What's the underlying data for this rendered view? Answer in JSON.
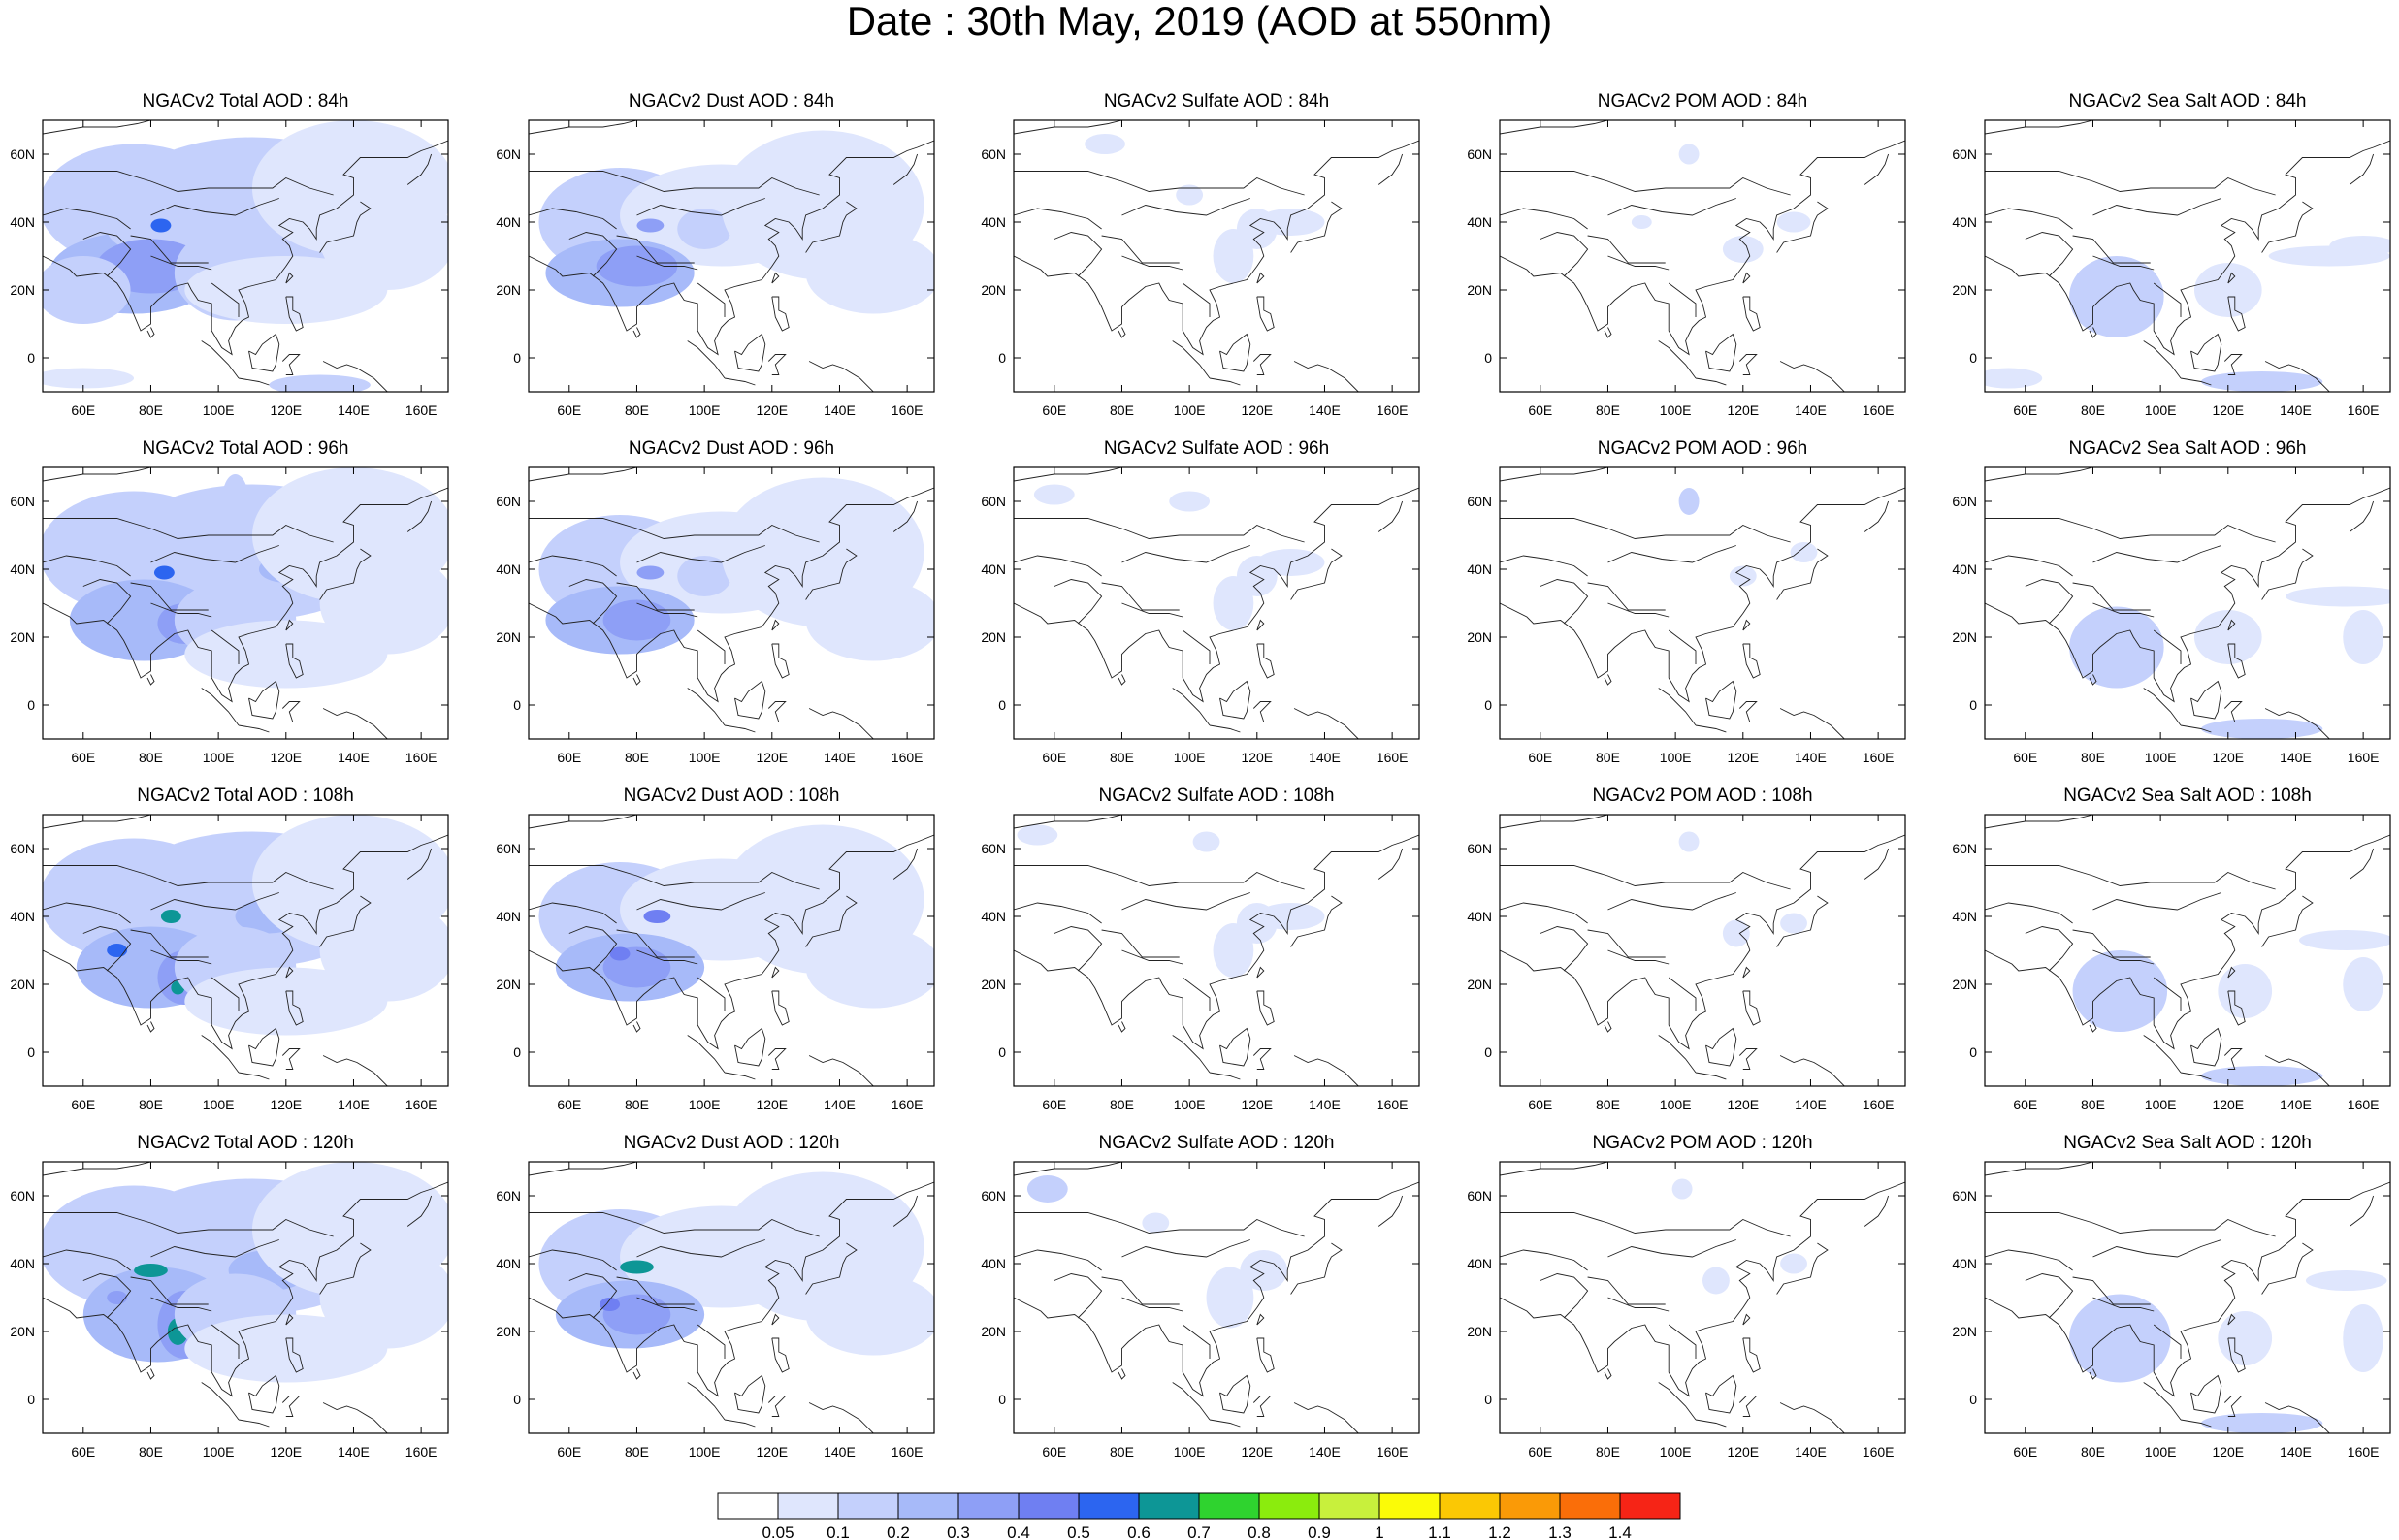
{
  "figure": {
    "title": "Date : 30th May, 2019 (AOD at 550nm)"
  },
  "chart_data": {
    "type": "heatmap",
    "projection": "cylindrical equidistant map of Asia",
    "lon_range": [
      48,
      168
    ],
    "lat_range": [
      -10,
      70
    ],
    "x_ticks": [
      "60E",
      "80E",
      "100E",
      "120E",
      "140E",
      "160E"
    ],
    "x_tick_values": [
      60,
      80,
      100,
      120,
      140,
      160
    ],
    "y_ticks": [
      "60N",
      "40N",
      "20N",
      "0"
    ],
    "y_tick_values": [
      60,
      40,
      20,
      0
    ],
    "panel_titles": [
      [
        "NGACv2 Total AOD : 84h",
        "NGACv2 Dust AOD : 84h",
        "NGACv2 Sulfate AOD : 84h",
        "NGACv2 POM AOD : 84h",
        "NGACv2 Sea Salt AOD : 84h"
      ],
      [
        "NGACv2 Total AOD : 96h",
        "NGACv2 Dust AOD : 96h",
        "NGACv2 Sulfate AOD : 96h",
        "NGACv2 POM AOD : 96h",
        "NGACv2 Sea Salt AOD : 96h"
      ],
      [
        "NGACv2 Total AOD : 108h",
        "NGACv2 Dust AOD : 108h",
        "NGACv2 Sulfate AOD : 108h",
        "NGACv2 POM AOD : 108h",
        "NGACv2 Sea Salt AOD : 108h"
      ],
      [
        "NGACv2 Total AOD : 120h",
        "NGACv2 Dust AOD : 120h",
        "NGACv2 Sulfate AOD : 120h",
        "NGACv2 POM AOD : 120h",
        "NGACv2 Sea Salt  AOD : 120h"
      ]
    ],
    "colorbar": {
      "labels": [
        "0.05",
        "0.1",
        "0.2",
        "0.3",
        "0.4",
        "0.5",
        "0.6",
        "0.7",
        "0.8",
        "0.9",
        "1",
        "1.1",
        "1.2",
        "1.3",
        "1.4"
      ],
      "colors": [
        "#ffffff",
        "#dfe6fd",
        "#c4d0fc",
        "#a7baf9",
        "#8e9ff6",
        "#6f7ff2",
        "#2c65f0",
        "#0d9696",
        "#2fd32f",
        "#8bec0d",
        "#c8f03c",
        "#fbfb07",
        "#fbc804",
        "#fa9a07",
        "#fa6e09",
        "#f62416"
      ]
    },
    "blobs_note": "approximate AOD fields per panel; each blob: [lon, lat, radius_lon, radius_lat, color_index]",
    "blobs": [
      [
        [
          [
            75,
            45,
            28,
            18,
            2
          ],
          [
            110,
            45,
            40,
            20,
            2
          ],
          [
            75,
            25,
            25,
            12,
            3
          ],
          [
            95,
            38,
            28,
            10,
            2
          ],
          [
            140,
            50,
            30,
            20,
            1
          ],
          [
            150,
            35,
            20,
            15,
            1
          ],
          [
            80,
            27,
            16,
            8,
            4
          ],
          [
            83,
            39,
            3,
            2,
            6
          ],
          [
            105,
            25,
            18,
            14,
            2
          ],
          [
            60,
            20,
            14,
            10,
            2
          ],
          [
            120,
            20,
            30,
            10,
            1
          ],
          [
            130,
            -8,
            15,
            3,
            2
          ],
          [
            60,
            -6,
            15,
            3,
            1
          ]
        ],
        [
          [
            75,
            40,
            24,
            16,
            2
          ],
          [
            105,
            42,
            30,
            15,
            1
          ],
          [
            75,
            25,
            22,
            10,
            3
          ],
          [
            80,
            27,
            12,
            6,
            4
          ],
          [
            84,
            39,
            4,
            2,
            4
          ],
          [
            100,
            38,
            8,
            6,
            2
          ],
          [
            135,
            45,
            30,
            22,
            1
          ],
          [
            150,
            25,
            20,
            12,
            1
          ]
        ],
        [
          [
            113,
            30,
            6,
            8,
            1
          ],
          [
            120,
            38,
            6,
            6,
            1
          ],
          [
            130,
            40,
            10,
            4,
            1
          ],
          [
            75,
            63,
            6,
            3,
            1
          ],
          [
            100,
            48,
            4,
            3,
            1
          ]
        ],
        [
          [
            104,
            60,
            3,
            3,
            1
          ],
          [
            120,
            32,
            6,
            4,
            1
          ],
          [
            135,
            40,
            5,
            3,
            1
          ],
          [
            90,
            40,
            3,
            2,
            1
          ]
        ],
        [
          [
            87,
            18,
            14,
            12,
            2
          ],
          [
            120,
            20,
            10,
            8,
            1
          ],
          [
            150,
            30,
            18,
            3,
            1
          ],
          [
            160,
            33,
            10,
            3,
            1
          ],
          [
            55,
            -6,
            10,
            3,
            1
          ],
          [
            130,
            -7,
            18,
            3,
            2
          ]
        ]
      ],
      [
        [
          [
            75,
            45,
            28,
            18,
            2
          ],
          [
            110,
            45,
            40,
            20,
            2
          ],
          [
            78,
            25,
            22,
            12,
            3
          ],
          [
            90,
            24,
            8,
            6,
            4
          ],
          [
            92,
            22,
            3,
            2,
            7
          ],
          [
            84,
            39,
            3,
            2,
            6
          ],
          [
            120,
            40,
            8,
            4,
            3
          ],
          [
            128,
            39,
            3,
            2,
            7
          ],
          [
            105,
            60,
            4,
            8,
            2
          ],
          [
            140,
            50,
            30,
            20,
            1
          ],
          [
            150,
            30,
            20,
            15,
            1
          ],
          [
            105,
            25,
            18,
            12,
            2
          ],
          [
            120,
            15,
            30,
            10,
            1
          ]
        ],
        [
          [
            75,
            40,
            24,
            16,
            2
          ],
          [
            105,
            42,
            30,
            15,
            1
          ],
          [
            75,
            25,
            22,
            10,
            3
          ],
          [
            80,
            25,
            10,
            6,
            4
          ],
          [
            84,
            39,
            4,
            2,
            4
          ],
          [
            100,
            38,
            8,
            6,
            2
          ],
          [
            135,
            45,
            30,
            22,
            1
          ],
          [
            150,
            25,
            20,
            12,
            1
          ]
        ],
        [
          [
            113,
            30,
            6,
            8,
            1
          ],
          [
            120,
            38,
            6,
            6,
            1
          ],
          [
            130,
            42,
            10,
            4,
            1
          ],
          [
            60,
            62,
            6,
            3,
            1
          ],
          [
            100,
            60,
            6,
            3,
            1
          ]
        ],
        [
          [
            104,
            60,
            3,
            4,
            2
          ],
          [
            120,
            38,
            4,
            3,
            1
          ],
          [
            138,
            45,
            4,
            3,
            1
          ]
        ],
        [
          [
            87,
            17,
            14,
            12,
            2
          ],
          [
            120,
            20,
            10,
            8,
            1
          ],
          [
            155,
            32,
            18,
            3,
            1
          ],
          [
            160,
            20,
            6,
            8,
            1
          ],
          [
            130,
            -7,
            18,
            3,
            2
          ]
        ]
      ],
      [
        [
          [
            75,
            45,
            28,
            18,
            2
          ],
          [
            110,
            45,
            40,
            20,
            2
          ],
          [
            80,
            25,
            22,
            12,
            3
          ],
          [
            90,
            22,
            8,
            8,
            4
          ],
          [
            86,
            40,
            3,
            2,
            7
          ],
          [
            70,
            30,
            3,
            2,
            6
          ],
          [
            88,
            19,
            2,
            2,
            7
          ],
          [
            115,
            40,
            10,
            5,
            3
          ],
          [
            105,
            25,
            18,
            12,
            2
          ],
          [
            140,
            50,
            30,
            20,
            1
          ],
          [
            150,
            30,
            20,
            15,
            1
          ],
          [
            120,
            15,
            30,
            10,
            1
          ]
        ],
        [
          [
            75,
            40,
            24,
            16,
            2
          ],
          [
            105,
            42,
            30,
            15,
            1
          ],
          [
            78,
            25,
            22,
            10,
            3
          ],
          [
            80,
            25,
            10,
            6,
            4
          ],
          [
            86,
            40,
            4,
            2,
            5
          ],
          [
            75,
            29,
            3,
            2,
            5
          ],
          [
            115,
            40,
            8,
            5,
            2
          ],
          [
            135,
            45,
            30,
            22,
            1
          ],
          [
            150,
            25,
            20,
            12,
            1
          ]
        ],
        [
          [
            113,
            30,
            6,
            8,
            1
          ],
          [
            120,
            38,
            6,
            6,
            1
          ],
          [
            130,
            40,
            10,
            4,
            1
          ],
          [
            55,
            64,
            6,
            3,
            1
          ],
          [
            105,
            62,
            4,
            3,
            1
          ]
        ],
        [
          [
            104,
            62,
            3,
            3,
            1
          ],
          [
            118,
            35,
            4,
            4,
            1
          ],
          [
            135,
            38,
            4,
            3,
            1
          ]
        ],
        [
          [
            88,
            18,
            14,
            12,
            2
          ],
          [
            125,
            18,
            8,
            8,
            1
          ],
          [
            155,
            33,
            14,
            3,
            1
          ],
          [
            160,
            20,
            6,
            8,
            1
          ],
          [
            130,
            -7,
            18,
            3,
            2
          ]
        ]
      ],
      [
        [
          [
            75,
            45,
            28,
            18,
            2
          ],
          [
            110,
            45,
            40,
            20,
            2
          ],
          [
            82,
            25,
            22,
            14,
            3
          ],
          [
            90,
            22,
            8,
            10,
            4
          ],
          [
            88,
            20,
            3,
            4,
            7
          ],
          [
            80,
            38,
            5,
            2,
            7
          ],
          [
            115,
            38,
            12,
            6,
            3
          ],
          [
            105,
            25,
            18,
            12,
            2
          ],
          [
            140,
            50,
            30,
            20,
            1
          ],
          [
            150,
            30,
            20,
            15,
            1
          ],
          [
            120,
            15,
            30,
            10,
            1
          ],
          [
            70,
            30,
            3,
            2,
            4
          ]
        ],
        [
          [
            75,
            40,
            24,
            16,
            2
          ],
          [
            105,
            42,
            30,
            15,
            1
          ],
          [
            78,
            25,
            22,
            10,
            3
          ],
          [
            80,
            25,
            10,
            6,
            4
          ],
          [
            80,
            39,
            5,
            2,
            7
          ],
          [
            72,
            28,
            3,
            2,
            5
          ],
          [
            115,
            40,
            8,
            5,
            2
          ],
          [
            135,
            45,
            30,
            22,
            1
          ],
          [
            150,
            25,
            20,
            12,
            1
          ]
        ],
        [
          [
            112,
            30,
            7,
            9,
            1
          ],
          [
            122,
            38,
            7,
            6,
            1
          ],
          [
            58,
            62,
            6,
            4,
            2
          ],
          [
            90,
            52,
            4,
            3,
            1
          ]
        ],
        [
          [
            102,
            62,
            3,
            3,
            1
          ],
          [
            112,
            35,
            4,
            4,
            1
          ],
          [
            135,
            40,
            4,
            3,
            1
          ]
        ],
        [
          [
            88,
            18,
            15,
            13,
            2
          ],
          [
            125,
            18,
            8,
            8,
            1
          ],
          [
            155,
            35,
            12,
            3,
            1
          ],
          [
            160,
            18,
            6,
            10,
            1
          ],
          [
            130,
            -7,
            18,
            3,
            2
          ]
        ]
      ]
    ]
  }
}
